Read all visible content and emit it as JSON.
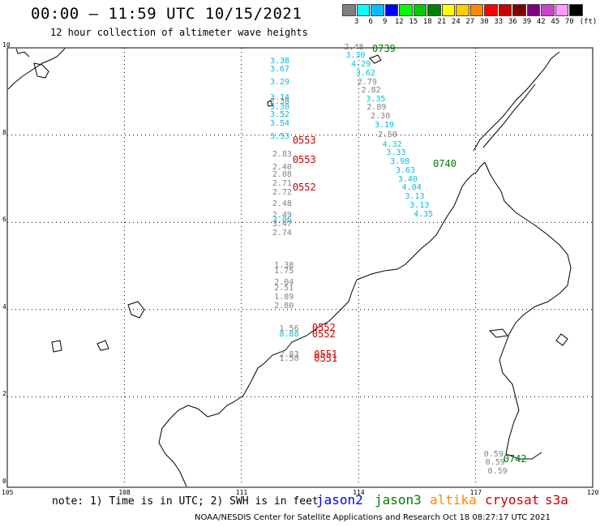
{
  "header": {
    "title": "00:00 — 11:59 UTC 10/15/2021",
    "subtitle": "12 hour collection of altimeter wave heights"
  },
  "scale": {
    "unit": "(ft)",
    "bins": [
      {
        "label": "3",
        "color": "#808080"
      },
      {
        "label": "6",
        "color": "#00ffff"
      },
      {
        "label": "9",
        "color": "#00bfff"
      },
      {
        "label": "12",
        "color": "#0000ff"
      },
      {
        "label": "15",
        "color": "#00ff00"
      },
      {
        "label": "18",
        "color": "#00cc00"
      },
      {
        "label": "21",
        "color": "#008000"
      },
      {
        "label": "24",
        "color": "#ffff00"
      },
      {
        "label": "27",
        "color": "#ffcc00"
      },
      {
        "label": "30",
        "color": "#ff8800"
      },
      {
        "label": "33",
        "color": "#ff0000"
      },
      {
        "label": "36",
        "color": "#cc0000"
      },
      {
        "label": "39",
        "color": "#800000"
      },
      {
        "label": "42",
        "color": "#800080"
      },
      {
        "label": "45",
        "color": "#cc44cc"
      },
      {
        "label": "70",
        "color": "#ff99ff"
      },
      {
        "label": "",
        "color": "#000000"
      }
    ]
  },
  "map": {
    "lat_ticks": [
      "10",
      "8",
      "6",
      "4",
      "2",
      "0"
    ],
    "lon_ticks": [
      "105",
      "108",
      "111",
      "114",
      "117",
      "120"
    ],
    "colors": {
      "jason2": "#0000ff",
      "jason3": "#008000",
      "altika": "#ff8800",
      "cryosat": "#cc0000",
      "s3a": "#cc0000",
      "grey": "#808080",
      "cyan": "#00c0e0"
    },
    "tracks": [
      {
        "name": "altika-track-west",
        "readings": [
          {
            "lon": 111.98,
            "lat": 9.67,
            "text": "3.38",
            "c": "cyan"
          },
          {
            "lon": 111.98,
            "lat": 9.48,
            "text": "3.67",
            "c": "cyan"
          },
          {
            "lon": 111.98,
            "lat": 9.18,
            "text": "3.29",
            "c": "cyan"
          },
          {
            "lon": 111.98,
            "lat": 8.83,
            "text": "3.14",
            "c": "cyan"
          },
          {
            "lon": 111.98,
            "lat": 8.73,
            "text": "2.38",
            "c": "grey"
          },
          {
            "lon": 111.98,
            "lat": 8.6,
            "text": "3.30",
            "c": "cyan"
          },
          {
            "lon": 111.98,
            "lat": 8.43,
            "text": "3.52",
            "c": "cyan"
          },
          {
            "lon": 111.98,
            "lat": 8.23,
            "text": "3.54",
            "c": "cyan"
          },
          {
            "lon": 111.98,
            "lat": 7.93,
            "text": "3.53",
            "c": "cyan"
          },
          {
            "lon": 112.04,
            "lat": 7.53,
            "text": "2.83",
            "c": "grey"
          },
          {
            "lon": 112.04,
            "lat": 7.23,
            "text": "2.40",
            "c": "grey"
          },
          {
            "lon": 112.04,
            "lat": 7.06,
            "text": "2.08",
            "c": "grey"
          },
          {
            "lon": 112.04,
            "lat": 6.86,
            "text": "2.71",
            "c": "grey"
          },
          {
            "lon": 112.04,
            "lat": 6.66,
            "text": "2.72",
            "c": "grey"
          },
          {
            "lon": 112.04,
            "lat": 6.39,
            "text": "2.48",
            "c": "grey"
          },
          {
            "lon": 112.04,
            "lat": 6.13,
            "text": "2.49",
            "c": "grey"
          },
          {
            "lon": 112.04,
            "lat": 6.03,
            "text": "3.06",
            "c": "cyan"
          },
          {
            "lon": 112.04,
            "lat": 5.93,
            "text": "3.47",
            "c": "grey"
          },
          {
            "lon": 112.04,
            "lat": 5.72,
            "text": "2.74",
            "c": "grey"
          },
          {
            "lon": 112.09,
            "lat": 4.98,
            "text": "1.38",
            "c": "grey"
          },
          {
            "lon": 112.09,
            "lat": 4.86,
            "text": "1.75",
            "c": "grey"
          },
          {
            "lon": 112.09,
            "lat": 4.59,
            "text": "2.04",
            "c": "grey"
          },
          {
            "lon": 112.09,
            "lat": 4.46,
            "text": "2.51",
            "c": "grey"
          },
          {
            "lon": 112.09,
            "lat": 4.26,
            "text": "1.89",
            "c": "grey"
          },
          {
            "lon": 112.09,
            "lat": 4.06,
            "text": "2.80",
            "c": "grey"
          },
          {
            "lon": 112.22,
            "lat": 3.53,
            "text": "1.56",
            "c": "grey"
          },
          {
            "lon": 112.22,
            "lat": 3.4,
            "text": "8.88",
            "c": "cyan"
          },
          {
            "lon": 112.22,
            "lat": 2.93,
            "text": "2.83",
            "c": "grey"
          },
          {
            "lon": 112.22,
            "lat": 2.85,
            "text": "1.50",
            "c": "grey"
          }
        ]
      },
      {
        "name": "jason3-track-east",
        "readings": [
          {
            "lon": 113.88,
            "lat": 9.99,
            "text": "2.48",
            "c": "grey"
          },
          {
            "lon": 113.92,
            "lat": 9.79,
            "text": "3.30",
            "c": "cyan"
          },
          {
            "lon": 114.06,
            "lat": 9.59,
            "text": "4.29",
            "c": "cyan"
          },
          {
            "lon": 114.18,
            "lat": 9.39,
            "text": "3.62",
            "c": "cyan"
          },
          {
            "lon": 114.22,
            "lat": 9.19,
            "text": "2.79",
            "c": "grey"
          },
          {
            "lon": 114.32,
            "lat": 9.0,
            "text": "2.82",
            "c": "grey"
          },
          {
            "lon": 114.44,
            "lat": 8.8,
            "text": "3.35",
            "c": "cyan"
          },
          {
            "lon": 114.46,
            "lat": 8.6,
            "text": "2.89",
            "c": "grey"
          },
          {
            "lon": 114.56,
            "lat": 8.4,
            "text": "2.30",
            "c": "grey"
          },
          {
            "lon": 114.66,
            "lat": 8.2,
            "text": "3.19",
            "c": "cyan"
          },
          {
            "lon": 114.74,
            "lat": 7.98,
            "text": "2.50",
            "c": "grey"
          },
          {
            "lon": 114.86,
            "lat": 7.76,
            "text": "4.32",
            "c": "cyan"
          },
          {
            "lon": 114.96,
            "lat": 7.56,
            "text": "3.33",
            "c": "cyan"
          },
          {
            "lon": 115.06,
            "lat": 7.36,
            "text": "3.98",
            "c": "cyan"
          },
          {
            "lon": 115.2,
            "lat": 7.16,
            "text": "3.63",
            "c": "cyan"
          },
          {
            "lon": 115.26,
            "lat": 6.96,
            "text": "3.40",
            "c": "cyan"
          },
          {
            "lon": 115.36,
            "lat": 6.76,
            "text": "4.04",
            "c": "cyan"
          },
          {
            "lon": 115.44,
            "lat": 6.56,
            "text": "3.13",
            "c": "cyan"
          },
          {
            "lon": 115.56,
            "lat": 6.36,
            "text": "3.13",
            "c": "cyan"
          },
          {
            "lon": 115.66,
            "lat": 6.16,
            "text": "4.35",
            "c": "cyan"
          },
          {
            "lon": 117.46,
            "lat": 0.65,
            "text": "0.59",
            "c": "grey"
          },
          {
            "lon": 117.5,
            "lat": 0.46,
            "text": "0.59",
            "c": "grey"
          },
          {
            "lon": 117.56,
            "lat": 0.26,
            "text": "0.59",
            "c": "grey"
          }
        ]
      }
    ],
    "time_labels": [
      {
        "lon": 114.64,
        "lat": 9.97,
        "text": "0739",
        "c": "jason3"
      },
      {
        "lon": 116.2,
        "lat": 7.33,
        "text": "0740",
        "c": "jason3"
      },
      {
        "lon": 118.0,
        "lat": 0.55,
        "text": "0742",
        "c": "jason3"
      },
      {
        "lon": 112.6,
        "lat": 7.86,
        "text": "0553",
        "c": "cryosat"
      },
      {
        "lon": 112.6,
        "lat": 7.41,
        "text": "0553",
        "c": "cryosat"
      },
      {
        "lon": 112.6,
        "lat": 6.79,
        "text": "0552",
        "c": "cryosat"
      },
      {
        "lon": 113.1,
        "lat": 3.57,
        "text": "0552",
        "c": "cryosat"
      },
      {
        "lon": 113.1,
        "lat": 3.42,
        "text": "0552",
        "c": "cryosat"
      },
      {
        "lon": 113.15,
        "lat": 2.96,
        "text": "0551",
        "c": "cryosat"
      },
      {
        "lon": 113.15,
        "lat": 2.86,
        "text": "0551",
        "c": "cryosat"
      }
    ]
  },
  "legend": {
    "note": "note: 1) Time is in UTC; 2) SWH is in feet",
    "satellites": [
      {
        "name": "jason2",
        "color": "#0000ff"
      },
      {
        "name": "jason3",
        "color": "#008000"
      },
      {
        "name": "altika",
        "color": "#ff8800"
      },
      {
        "name": "cryosat",
        "color": "#cc0000"
      },
      {
        "name": "s3a",
        "color": "#cc0000"
      }
    ]
  },
  "footer": "NOAA/NESDIS Center for Satellite Applications and Research   Oct 18 08:27:17 UTC 2021"
}
